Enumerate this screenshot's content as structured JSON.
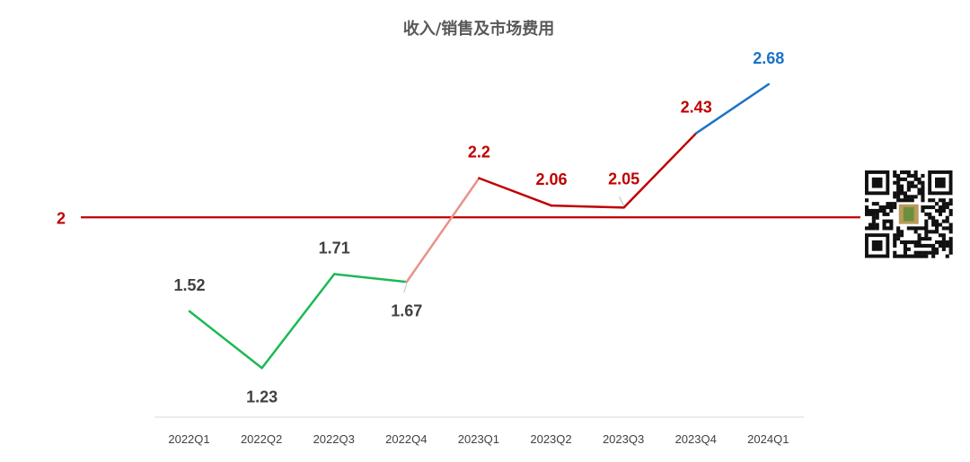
{
  "chart_data": {
    "type": "line",
    "title": "收入/销售及市场费用",
    "xlabel": "",
    "ylabel": "",
    "categories": [
      "2022Q1",
      "2022Q2",
      "2022Q3",
      "2022Q4",
      "2023Q1",
      "2023Q2",
      "2023Q3",
      "2023Q4",
      "2024Q1"
    ],
    "values": [
      1.52,
      1.23,
      1.71,
      1.67,
      2.2,
      2.06,
      2.05,
      2.43,
      2.68
    ],
    "labels": [
      "1.52",
      "1.23",
      "1.71",
      "1.67",
      "2.2",
      "2.06",
      "2.05",
      "2.43",
      "2.68"
    ],
    "reference_line": {
      "value": 2,
      "label": "2",
      "color": "#c00000"
    },
    "segment_colors": [
      "#1db954",
      "#1db954",
      "#1db954",
      "#e8938a",
      "#c00000",
      "#c00000",
      "#c00000",
      "#1a73c6"
    ],
    "label_colors": [
      "#404040",
      "#404040",
      "#404040",
      "#404040",
      "#c00000",
      "#c00000",
      "#c00000",
      "#c00000",
      "#1a73c6"
    ],
    "grid": false,
    "legend": "none"
  },
  "qr_code": {
    "icon": "qr-code-icon"
  }
}
